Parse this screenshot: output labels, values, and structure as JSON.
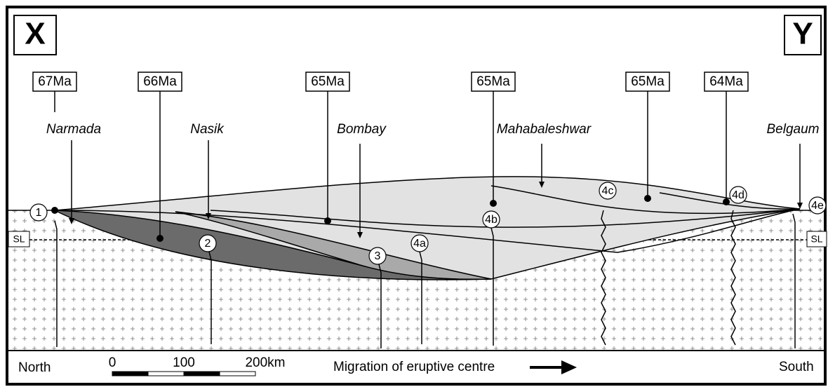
{
  "corners": {
    "left": "X",
    "right": "Y"
  },
  "ages": [
    "67Ma",
    "66Ma",
    "65Ma",
    "65Ma",
    "65Ma",
    "64Ma"
  ],
  "places": [
    "Narmada",
    "Nasik",
    "Bombay",
    "Mahabaleshwar",
    "Belgaum"
  ],
  "centres": [
    "1",
    "2",
    "3",
    "4a",
    "4b",
    "4c",
    "4d",
    "4e"
  ],
  "sea_level": [
    "SL",
    "SL"
  ],
  "footer": {
    "north": "North",
    "south": "South",
    "scale": [
      "0",
      "100",
      "200km"
    ],
    "migration": "Migration of eruptive centre"
  }
}
